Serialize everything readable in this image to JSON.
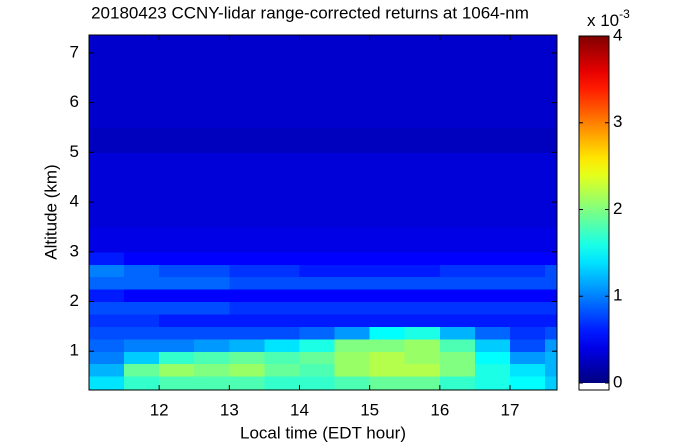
{
  "chart_data": {
    "type": "heatmap",
    "title": "20180423 CCNY-lidar range-corrected returns at 1064-nm",
    "xlabel": "Local time (EDT hour)",
    "ylabel": "Altitude (km)",
    "colorbar_multiplier": "x 10",
    "colorbar_exponent": "-3",
    "colormap": "jet",
    "xlim": [
      11,
      17.67
    ],
    "ylim": [
      0.22,
      7.36
    ],
    "xticks": [
      12,
      13,
      14,
      15,
      16,
      17
    ],
    "yticks": [
      1,
      2,
      3,
      4,
      5,
      6,
      7
    ],
    "clim": [
      0,
      4
    ],
    "cticks": [
      0,
      1,
      2,
      3,
      4
    ],
    "xbins": [
      11,
      11.5,
      12,
      12.5,
      13,
      13.5,
      14,
      14.5,
      15,
      15.5,
      16,
      16.5,
      17,
      17.5,
      17.67
    ],
    "ybins": [
      0.22,
      0.5,
      0.75,
      1.0,
      1.25,
      1.5,
      1.75,
      2.0,
      2.25,
      2.5,
      2.75,
      3.0,
      3.5,
      4.0,
      4.5,
      5.0,
      5.5,
      6.0,
      6.5,
      7.0,
      7.36
    ],
    "z": [
      [
        1.4,
        1.7,
        1.8,
        1.8,
        1.8,
        1.7,
        1.7,
        1.8,
        1.9,
        1.9,
        1.7,
        1.6,
        1.5,
        1.3
      ],
      [
        1.2,
        1.9,
        2.1,
        2.0,
        2.1,
        1.9,
        1.8,
        2.1,
        2.2,
        2.2,
        2.0,
        1.6,
        1.4,
        1.2
      ],
      [
        1.0,
        1.3,
        1.7,
        1.8,
        1.9,
        1.8,
        1.9,
        2.1,
        2.2,
        2.1,
        2.0,
        1.5,
        1.1,
        1.2
      ],
      [
        0.9,
        1.0,
        1.0,
        1.1,
        1.2,
        1.4,
        1.6,
        2.0,
        2.0,
        2.1,
        1.8,
        1.3,
        0.8,
        1.1
      ],
      [
        0.8,
        0.8,
        0.8,
        0.8,
        0.8,
        0.8,
        0.9,
        1.1,
        1.5,
        1.6,
        1.2,
        0.9,
        0.7,
        0.8
      ],
      [
        0.7,
        0.7,
        0.6,
        0.6,
        0.6,
        0.6,
        0.6,
        0.6,
        0.6,
        0.6,
        0.6,
        0.6,
        0.6,
        0.6
      ],
      [
        0.8,
        0.8,
        0.8,
        0.8,
        0.7,
        0.7,
        0.7,
        0.7,
        0.7,
        0.7,
        0.7,
        0.7,
        0.7,
        0.7
      ],
      [
        0.6,
        0.5,
        0.5,
        0.5,
        0.5,
        0.5,
        0.5,
        0.5,
        0.5,
        0.5,
        0.5,
        0.5,
        0.5,
        0.5
      ],
      [
        0.9,
        0.9,
        0.9,
        0.9,
        0.8,
        0.8,
        0.8,
        0.8,
        0.8,
        0.8,
        0.8,
        0.8,
        0.8,
        0.8
      ],
      [
        1.0,
        0.9,
        0.8,
        0.8,
        0.7,
        0.7,
        0.6,
        0.6,
        0.6,
        0.6,
        0.7,
        0.7,
        0.7,
        0.8
      ],
      [
        0.6,
        0.5,
        0.5,
        0.5,
        0.5,
        0.5,
        0.5,
        0.5,
        0.5,
        0.5,
        0.5,
        0.5,
        0.5,
        0.5
      ],
      [
        0.4,
        0.4,
        0.4,
        0.4,
        0.4,
        0.4,
        0.4,
        0.4,
        0.4,
        0.4,
        0.4,
        0.4,
        0.4,
        0.4
      ],
      [
        0.35,
        0.35,
        0.35,
        0.35,
        0.35,
        0.35,
        0.35,
        0.35,
        0.35,
        0.35,
        0.35,
        0.35,
        0.35,
        0.35
      ],
      [
        0.35,
        0.35,
        0.35,
        0.35,
        0.35,
        0.35,
        0.35,
        0.35,
        0.35,
        0.35,
        0.35,
        0.35,
        0.35,
        0.35
      ],
      [
        0.35,
        0.35,
        0.35,
        0.35,
        0.35,
        0.35,
        0.35,
        0.35,
        0.35,
        0.35,
        0.35,
        0.35,
        0.35,
        0.35
      ],
      [
        0.25,
        0.25,
        0.25,
        0.25,
        0.25,
        0.25,
        0.25,
        0.25,
        0.25,
        0.25,
        0.25,
        0.25,
        0.25,
        0.25
      ],
      [
        0.3,
        0.3,
        0.3,
        0.3,
        0.3,
        0.3,
        0.3,
        0.3,
        0.3,
        0.3,
        0.3,
        0.3,
        0.3,
        0.3
      ],
      [
        0.3,
        0.3,
        0.3,
        0.3,
        0.3,
        0.3,
        0.3,
        0.3,
        0.3,
        0.3,
        0.3,
        0.3,
        0.3,
        0.3
      ],
      [
        0.3,
        0.3,
        0.3,
        0.3,
        0.3,
        0.3,
        0.3,
        0.3,
        0.3,
        0.3,
        0.3,
        0.3,
        0.3,
        0.3
      ],
      [
        0.3,
        0.3,
        0.3,
        0.3,
        0.3,
        0.3,
        0.3,
        0.3,
        0.3,
        0.3,
        0.3,
        0.3,
        0.3,
        0.3
      ]
    ]
  }
}
